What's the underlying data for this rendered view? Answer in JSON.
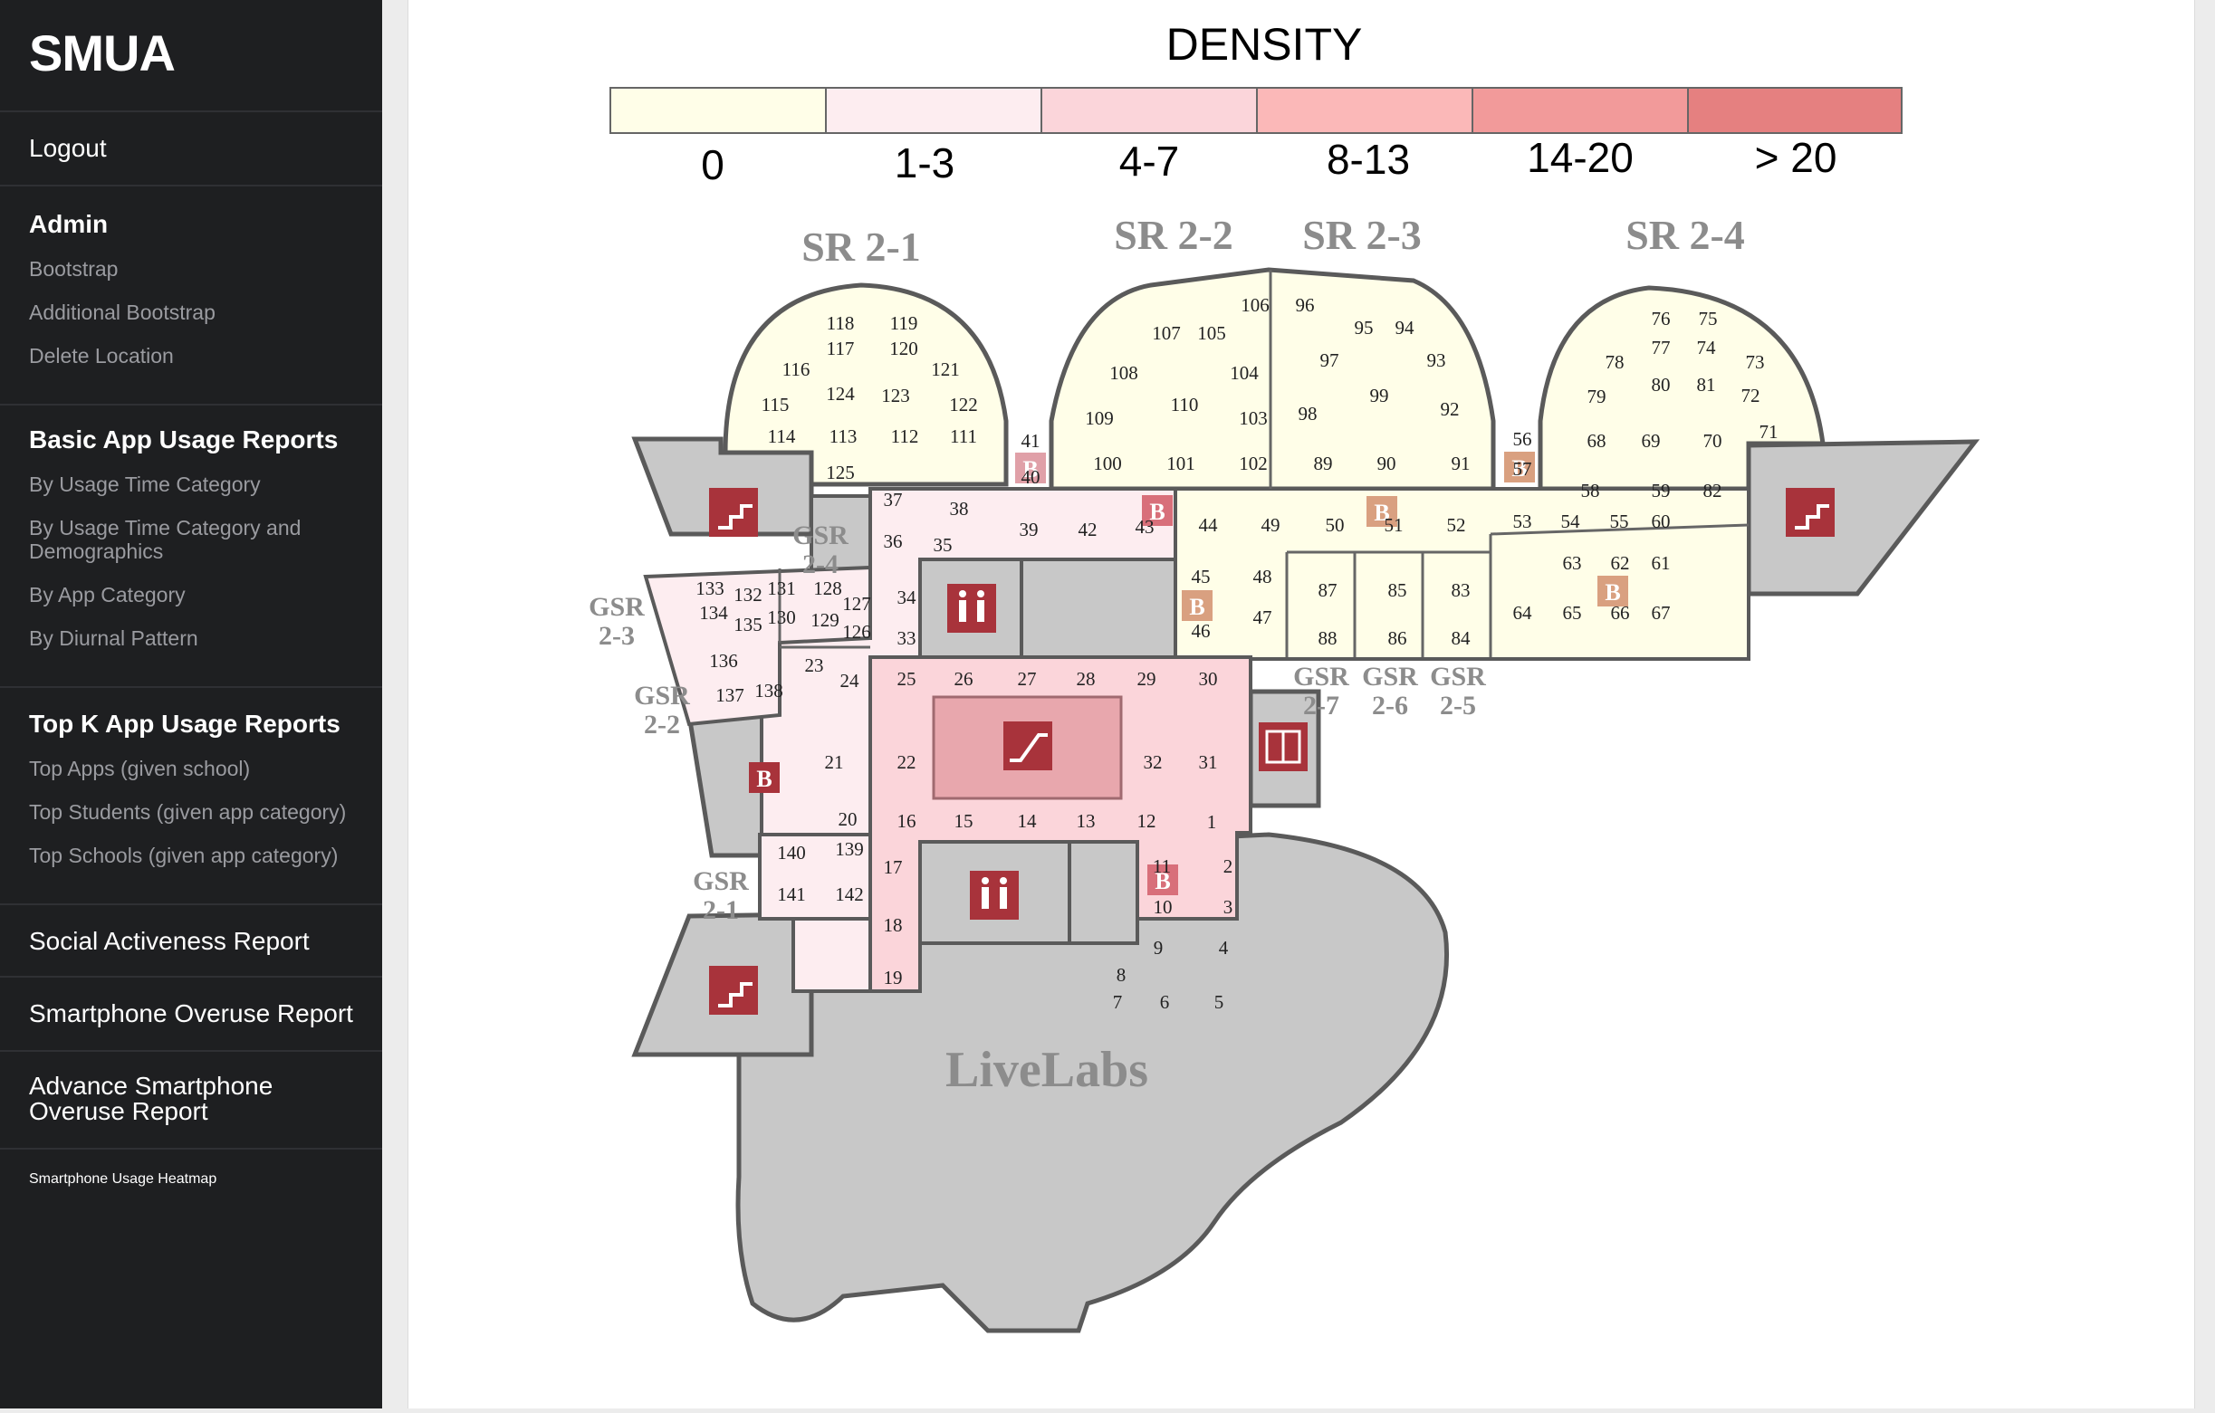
{
  "app": {
    "brand": "SMUA"
  },
  "nav": {
    "logout": "Logout",
    "admin": {
      "title": "Admin",
      "items": [
        "Bootstrap",
        "Additional Bootstrap",
        "Delete Location"
      ]
    },
    "basic": {
      "title": "Basic App Usage Reports",
      "items": [
        "By Usage Time Category",
        "By Usage Time Category and Demographics",
        "By App Category",
        "By Diurnal Pattern"
      ]
    },
    "topk": {
      "title": "Top K App Usage Reports",
      "items": [
        "Top Apps (given school)",
        "Top Students (given app category)",
        "Top Schools (given app category)"
      ]
    },
    "social": "Social Activeness Report",
    "overuse": "Smartphone Overuse Report",
    "advance_overuse": "Advance Smartphone Overuse Report",
    "heatmap": "Smartphone Usage Heatmap"
  },
  "legend": {
    "title": "DENSITY",
    "bins": [
      {
        "label": "0",
        "color": "#fffee8"
      },
      {
        "label": "1-3",
        "color": "#fdedf0"
      },
      {
        "label": "4-7",
        "color": "#fbd5da"
      },
      {
        "label": "8-13",
        "color": "#fbb8b8"
      },
      {
        "label": "14-20",
        "color": "#f29a9a"
      },
      {
        "label": "> 20",
        "color": "#e58080"
      }
    ]
  },
  "map": {
    "seminar_rooms": [
      "SR 2-1",
      "SR 2-2",
      "SR 2-3",
      "SR 2-4"
    ],
    "gsr": {
      "g1": "GSR 2-1",
      "g2": "GSR 2-2",
      "g3": "GSR 2-3",
      "g4": "GSR 2-4",
      "g5": "GSR 2-5",
      "g6": "GSR 2-6",
      "g7": "GSR 2-7"
    },
    "livelabs": "LiveLabs",
    "bin_marker": "B",
    "colors": {
      "utility_gray": "#c8c8c8",
      "wall": "#5a5a5a",
      "icon_red": "#a8333b"
    },
    "zone_density": {
      "sr_2_1": "0",
      "sr_2_2": "0",
      "sr_2_3": "0",
      "sr_2_4": "0",
      "east_corridor": "0",
      "gsr_2_3_area": "1-3",
      "west_corridor": "1-3",
      "central_atrium": "4-7"
    },
    "seat_numbers": [
      "1",
      "2",
      "3",
      "4",
      "5",
      "6",
      "7",
      "8",
      "9",
      "10",
      "11",
      "12",
      "13",
      "14",
      "15",
      "16",
      "17",
      "18",
      "19",
      "20",
      "21",
      "22",
      "23",
      "24",
      "25",
      "26",
      "27",
      "28",
      "29",
      "30",
      "31",
      "32",
      "33",
      "34",
      "35",
      "36",
      "37",
      "38",
      "39",
      "40",
      "41",
      "42",
      "43",
      "44",
      "45",
      "46",
      "47",
      "48",
      "49",
      "50",
      "51",
      "52",
      "53",
      "54",
      "55",
      "56",
      "57",
      "58",
      "59",
      "60",
      "61",
      "62",
      "63",
      "64",
      "65",
      "66",
      "67",
      "68",
      "69",
      "70",
      "71",
      "72",
      "73",
      "74",
      "75",
      "76",
      "77",
      "78",
      "79",
      "80",
      "81",
      "82",
      "83",
      "84",
      "85",
      "86",
      "87",
      "88",
      "89",
      "90",
      "91",
      "92",
      "93",
      "94",
      "95",
      "96",
      "97",
      "98",
      "99",
      "100",
      "101",
      "102",
      "103",
      "104",
      "105",
      "106",
      "107",
      "108",
      "109",
      "110",
      "111",
      "112",
      "113",
      "114",
      "115",
      "116",
      "117",
      "118",
      "119",
      "120",
      "121",
      "122",
      "123",
      "124",
      "125",
      "126",
      "127",
      "128",
      "129",
      "130",
      "131",
      "132",
      "133",
      "134",
      "135",
      "136",
      "137",
      "138",
      "139",
      "140",
      "141",
      "142"
    ]
  }
}
